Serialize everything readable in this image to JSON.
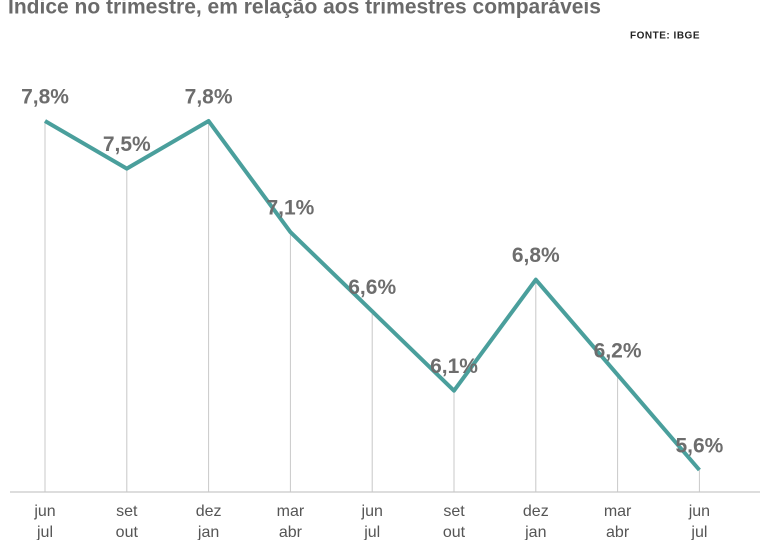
{
  "chart_data": {
    "type": "line",
    "title": "Índice no trimestre, em relação aos trimestres comparáveis",
    "source": "FONTE: IBGE",
    "categories": [
      [
        "jun",
        "jul"
      ],
      [
        "set",
        "out"
      ],
      [
        "dez",
        "jan"
      ],
      [
        "mar",
        "abr"
      ],
      [
        "jun",
        "jul"
      ],
      [
        "set",
        "out"
      ],
      [
        "dez",
        "jan"
      ],
      [
        "mar",
        "abr"
      ],
      [
        "jun",
        "jul"
      ]
    ],
    "values": [
      7.8,
      7.5,
      7.8,
      7.1,
      6.6,
      6.1,
      6.8,
      6.2,
      5.6
    ],
    "value_labels": [
      "7,8%",
      "7,5%",
      "7,8%",
      "7,1%",
      "6,6%",
      "6,1%",
      "6,8%",
      "6,2%",
      "5,6%"
    ],
    "color": "#4a9f9c"
  }
}
